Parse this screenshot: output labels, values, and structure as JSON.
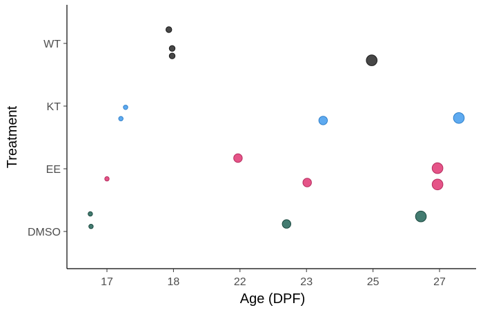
{
  "chart_data": {
    "type": "scatter",
    "title": "",
    "xlabel": "Age (DPF)",
    "ylabel": "Treatment",
    "x_ticks": [
      "17",
      "18",
      "22",
      "23",
      "25",
      "27"
    ],
    "y_ticks": [
      "DMSO",
      "EE",
      "KT",
      "WT"
    ],
    "grid": false,
    "legend": "none",
    "series": [
      {
        "color": "#333333",
        "stroke": "#1a1a1a",
        "points": [
          {
            "x": "18",
            "y": "WT",
            "y_jitter": 0.22,
            "x_jitter": -0.07,
            "size": 1
          },
          {
            "x": "18",
            "y": "WT",
            "y_jitter": -0.08,
            "x_jitter": -0.02,
            "size": 1
          },
          {
            "x": "18",
            "y": "WT",
            "y_jitter": -0.2,
            "x_jitter": -0.02,
            "size": 1
          },
          {
            "x": "25",
            "y": "WT",
            "y_jitter": -0.27,
            "x_jitter": -0.02,
            "size": 3
          }
        ]
      },
      {
        "color": "#4da1ee",
        "stroke": "#2f7fc9",
        "points": [
          {
            "x": "17",
            "y": "KT",
            "y_jitter": -0.02,
            "x_jitter": 0.28,
            "size": 0
          },
          {
            "x": "17",
            "y": "KT",
            "y_jitter": -0.2,
            "x_jitter": 0.21,
            "size": 0
          },
          {
            "x": "23",
            "y": "KT",
            "y_jitter": -0.23,
            "x_jitter": 0.25,
            "size": 2
          },
          {
            "x": "27",
            "y": "KT",
            "y_jitter": -0.19,
            "x_jitter": 0.29,
            "size": 3
          }
        ]
      },
      {
        "color": "#e2417b",
        "stroke": "#b52d5e",
        "points": [
          {
            "x": "17",
            "y": "EE",
            "y_jitter": -0.16,
            "x_jitter": 0.0,
            "size": 0
          },
          {
            "x": "22",
            "y": "EE",
            "y_jitter": 0.17,
            "x_jitter": -0.03,
            "size": 2
          },
          {
            "x": "23",
            "y": "EE",
            "y_jitter": -0.22,
            "x_jitter": 0.01,
            "size": 2
          },
          {
            "x": "27",
            "y": "EE",
            "y_jitter": 0.01,
            "x_jitter": -0.03,
            "size": 3
          },
          {
            "x": "27",
            "y": "EE",
            "y_jitter": -0.25,
            "x_jitter": -0.03,
            "size": 3
          }
        ]
      },
      {
        "color": "#2f6d61",
        "stroke": "#1d4a41",
        "points": [
          {
            "x": "17",
            "y": "DMSO",
            "y_jitter": 0.28,
            "x_jitter": -0.25,
            "size": 0
          },
          {
            "x": "17",
            "y": "DMSO",
            "y_jitter": 0.08,
            "x_jitter": -0.24,
            "size": 0
          },
          {
            "x": "23",
            "y": "DMSO",
            "y_jitter": 0.12,
            "x_jitter": -0.3,
            "size": 2
          },
          {
            "x": "27",
            "y": "DMSO",
            "y_jitter": 0.24,
            "x_jitter": -0.28,
            "size": 3
          }
        ]
      }
    ]
  }
}
